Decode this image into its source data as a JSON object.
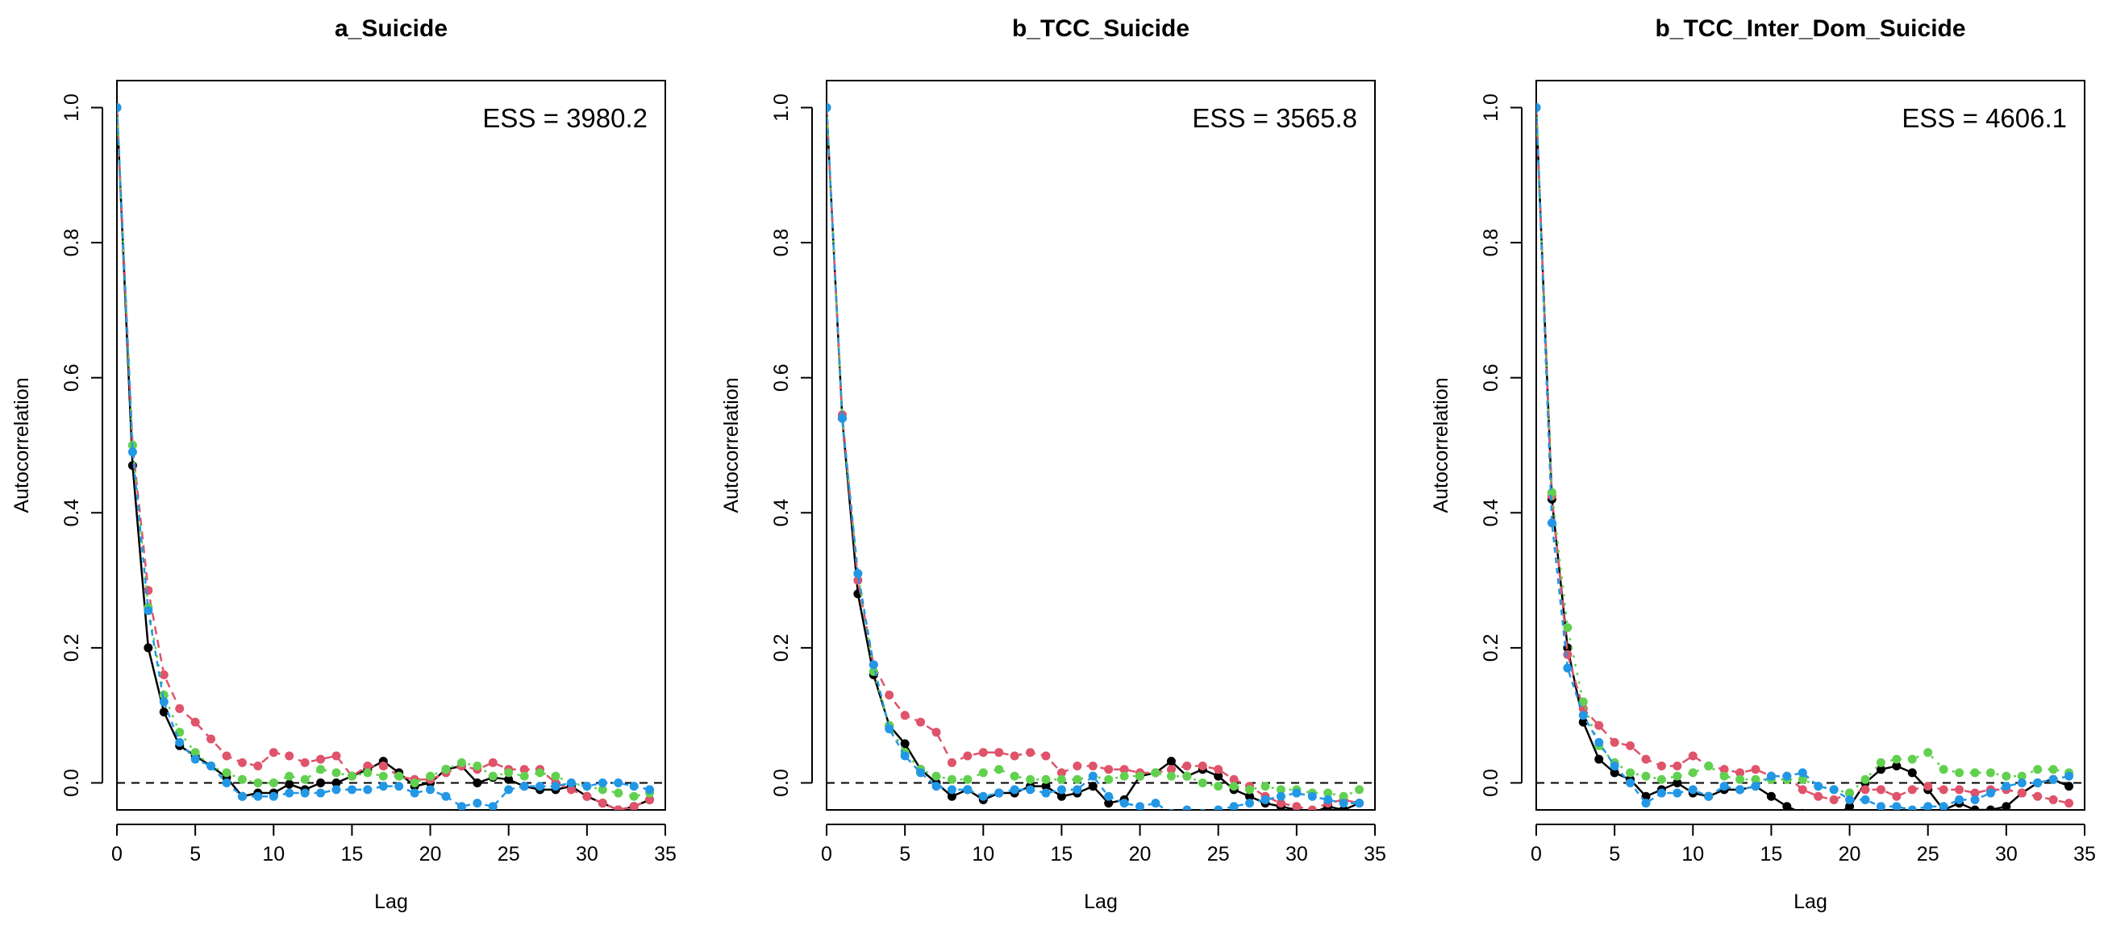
{
  "chart_data": [
    {
      "type": "line",
      "title": "a_Suicide",
      "xlabel": "Lag",
      "ylabel": "Autocorrelation",
      "annotation": "ESS = 3980.2",
      "xlim": [
        0,
        35
      ],
      "ylim": [
        -0.04,
        1.04
      ],
      "x_ticks": [
        0,
        5,
        10,
        15,
        20,
        25,
        30,
        35
      ],
      "y_ticks": [
        0.0,
        0.2,
        0.4,
        0.6,
        0.8,
        1.0
      ],
      "reference_line_y": 0,
      "colors": [
        "#000000",
        "#DF536B",
        "#61D04F",
        "#2297E6"
      ],
      "x": [
        0,
        1,
        2,
        3,
        4,
        5,
        6,
        7,
        8,
        9,
        10,
        11,
        12,
        13,
        14,
        15,
        16,
        17,
        18,
        19,
        20,
        21,
        22,
        23,
        24,
        25,
        26,
        27,
        28,
        29,
        30,
        31,
        32,
        33,
        34
      ],
      "series": [
        {
          "values": [
            1.0,
            0.47,
            0.2,
            0.105,
            0.055,
            0.04,
            0.025,
            0.008,
            -0.02,
            -0.015,
            -0.015,
            -0.002,
            -0.01,
            0.0,
            0.0,
            0.01,
            0.02,
            0.032,
            0.015,
            -0.005,
            0.0,
            0.02,
            0.025,
            0.0,
            0.008,
            0.005,
            -0.005,
            -0.01,
            -0.01,
            -0.005,
            -0.02,
            -0.03,
            -0.04,
            -0.035,
            -0.025
          ]
        },
        {
          "values": [
            1.0,
            0.5,
            0.285,
            0.16,
            0.11,
            0.09,
            0.065,
            0.04,
            0.03,
            0.025,
            0.045,
            0.04,
            0.03,
            0.035,
            0.04,
            0.01,
            0.025,
            0.025,
            0.01,
            0.005,
            0.005,
            0.015,
            0.025,
            0.02,
            0.03,
            0.02,
            0.02,
            0.02,
            0.0,
            -0.01,
            -0.02,
            -0.03,
            -0.04,
            -0.035,
            -0.025
          ]
        },
        {
          "values": [
            1.0,
            0.5,
            0.26,
            0.13,
            0.075,
            0.045,
            0.025,
            0.015,
            0.005,
            0.0,
            0.0,
            0.01,
            0.005,
            0.02,
            0.015,
            0.01,
            0.015,
            0.01,
            0.01,
            0.0,
            0.01,
            0.02,
            0.03,
            0.025,
            0.01,
            0.015,
            0.01,
            0.015,
            0.01,
            0.0,
            -0.005,
            -0.01,
            -0.015,
            -0.02,
            -0.015
          ]
        },
        {
          "values": [
            1.0,
            0.49,
            0.255,
            0.12,
            0.06,
            0.035,
            0.025,
            0.0,
            -0.02,
            -0.02,
            -0.02,
            -0.015,
            -0.015,
            -0.015,
            -0.01,
            -0.01,
            -0.01,
            -0.005,
            -0.005,
            -0.015,
            -0.01,
            -0.02,
            -0.035,
            -0.03,
            -0.035,
            -0.01,
            -0.005,
            -0.005,
            -0.005,
            0.0,
            -0.005,
            0.0,
            0.0,
            -0.005,
            -0.01
          ]
        }
      ]
    },
    {
      "type": "line",
      "title": "b_TCC_Suicide",
      "xlabel": "Lag",
      "ylabel": "Autocorrelation",
      "annotation": "ESS = 3565.8",
      "xlim": [
        0,
        35
      ],
      "ylim": [
        -0.04,
        1.04
      ],
      "x_ticks": [
        0,
        5,
        10,
        15,
        20,
        25,
        30,
        35
      ],
      "y_ticks": [
        0.0,
        0.2,
        0.4,
        0.6,
        0.8,
        1.0
      ],
      "reference_line_y": 0,
      "colors": [
        "#000000",
        "#DF536B",
        "#61D04F",
        "#2297E6"
      ],
      "x": [
        0,
        1,
        2,
        3,
        4,
        5,
        6,
        7,
        8,
        9,
        10,
        11,
        12,
        13,
        14,
        15,
        16,
        17,
        18,
        19,
        20,
        21,
        22,
        23,
        24,
        25,
        26,
        27,
        28,
        29,
        30,
        31,
        32,
        33,
        34
      ],
      "series": [
        {
          "values": [
            1.0,
            0.54,
            0.28,
            0.16,
            0.085,
            0.058,
            0.02,
            0.0,
            -0.02,
            -0.01,
            -0.025,
            -0.015,
            -0.015,
            -0.005,
            -0.005,
            -0.02,
            -0.015,
            -0.005,
            -0.03,
            -0.025,
            0.01,
            0.015,
            0.032,
            0.01,
            0.02,
            0.01,
            -0.01,
            -0.02,
            -0.03,
            -0.035,
            -0.04,
            -0.045,
            -0.035,
            -0.04,
            -0.03
          ]
        },
        {
          "values": [
            1.0,
            0.545,
            0.3,
            0.175,
            0.13,
            0.1,
            0.09,
            0.075,
            0.03,
            0.04,
            0.045,
            0.045,
            0.04,
            0.045,
            0.04,
            0.015,
            0.025,
            0.025,
            0.02,
            0.02,
            0.015,
            0.015,
            0.02,
            0.025,
            0.025,
            0.02,
            0.005,
            -0.005,
            -0.02,
            -0.03,
            -0.035,
            -0.04,
            -0.03,
            -0.025,
            -0.03
          ]
        },
        {
          "values": [
            1.0,
            0.54,
            0.31,
            0.165,
            0.085,
            0.045,
            0.02,
            0.01,
            0.005,
            0.005,
            0.015,
            0.02,
            0.01,
            0.005,
            0.005,
            0.005,
            0.005,
            0.01,
            0.005,
            0.01,
            0.01,
            0.015,
            0.01,
            0.01,
            0.0,
            -0.005,
            -0.005,
            -0.01,
            -0.005,
            -0.01,
            -0.01,
            -0.015,
            -0.015,
            -0.02,
            -0.01
          ]
        },
        {
          "values": [
            1.0,
            0.54,
            0.31,
            0.175,
            0.08,
            0.04,
            0.015,
            -0.005,
            -0.01,
            -0.01,
            -0.02,
            -0.015,
            -0.01,
            -0.01,
            -0.015,
            -0.01,
            -0.01,
            0.01,
            -0.02,
            -0.03,
            -0.035,
            -0.03,
            -0.045,
            -0.04,
            -0.045,
            -0.04,
            -0.035,
            -0.03,
            -0.025,
            -0.02,
            -0.015,
            -0.02,
            -0.025,
            -0.03,
            -0.03
          ]
        }
      ]
    },
    {
      "type": "line",
      "title": "b_TCC_Inter_Dom_Suicide",
      "xlabel": "Lag",
      "ylabel": "Autocorrelation",
      "annotation": "ESS = 4606.1",
      "xlim": [
        0,
        35
      ],
      "ylim": [
        -0.04,
        1.04
      ],
      "x_ticks": [
        0,
        5,
        10,
        15,
        20,
        25,
        30,
        35
      ],
      "y_ticks": [
        0.0,
        0.2,
        0.4,
        0.6,
        0.8,
        1.0
      ],
      "reference_line_y": 0,
      "colors": [
        "#000000",
        "#DF536B",
        "#61D04F",
        "#2297E6"
      ],
      "x": [
        0,
        1,
        2,
        3,
        4,
        5,
        6,
        7,
        8,
        9,
        10,
        11,
        12,
        13,
        14,
        15,
        16,
        17,
        18,
        19,
        20,
        21,
        22,
        23,
        24,
        25,
        26,
        27,
        28,
        29,
        30,
        31,
        32,
        33,
        34
      ],
      "series": [
        {
          "values": [
            1.0,
            0.42,
            0.2,
            0.09,
            0.035,
            0.015,
            0.005,
            -0.02,
            -0.01,
            0.0,
            -0.015,
            -0.02,
            -0.01,
            -0.01,
            -0.005,
            -0.02,
            -0.035,
            -0.045,
            -0.05,
            -0.05,
            -0.035,
            0.0,
            0.02,
            0.025,
            0.015,
            -0.01,
            -0.04,
            -0.03,
            -0.04,
            -0.04,
            -0.035,
            -0.015,
            0.0,
            0.005,
            -0.005
          ]
        },
        {
          "values": [
            1.0,
            0.425,
            0.19,
            0.11,
            0.085,
            0.06,
            0.055,
            0.035,
            0.025,
            0.025,
            0.04,
            0.025,
            0.02,
            0.015,
            0.02,
            0.01,
            0.01,
            -0.01,
            -0.02,
            -0.025,
            -0.015,
            -0.01,
            -0.01,
            -0.02,
            -0.01,
            -0.005,
            -0.01,
            -0.01,
            -0.015,
            -0.01,
            -0.01,
            -0.015,
            -0.02,
            -0.025,
            -0.03
          ]
        },
        {
          "values": [
            1.0,
            0.43,
            0.23,
            0.12,
            0.055,
            0.03,
            0.015,
            0.01,
            0.005,
            0.01,
            0.015,
            0.025,
            0.01,
            0.005,
            0.005,
            0.005,
            0.005,
            0.005,
            -0.005,
            -0.01,
            -0.015,
            0.005,
            0.03,
            0.035,
            0.035,
            0.045,
            0.02,
            0.015,
            0.015,
            0.015,
            0.01,
            0.01,
            0.02,
            0.02,
            0.015
          ]
        },
        {
          "values": [
            1.0,
            0.385,
            0.17,
            0.1,
            0.06,
            0.025,
            0.0,
            -0.03,
            -0.015,
            -0.015,
            -0.01,
            -0.02,
            -0.005,
            -0.01,
            -0.005,
            0.01,
            0.01,
            0.015,
            -0.005,
            -0.01,
            -0.025,
            -0.025,
            -0.035,
            -0.035,
            -0.04,
            -0.035,
            -0.035,
            -0.025,
            -0.025,
            -0.015,
            -0.005,
            0.0,
            0.0,
            0.005,
            0.01
          ]
        }
      ]
    }
  ]
}
